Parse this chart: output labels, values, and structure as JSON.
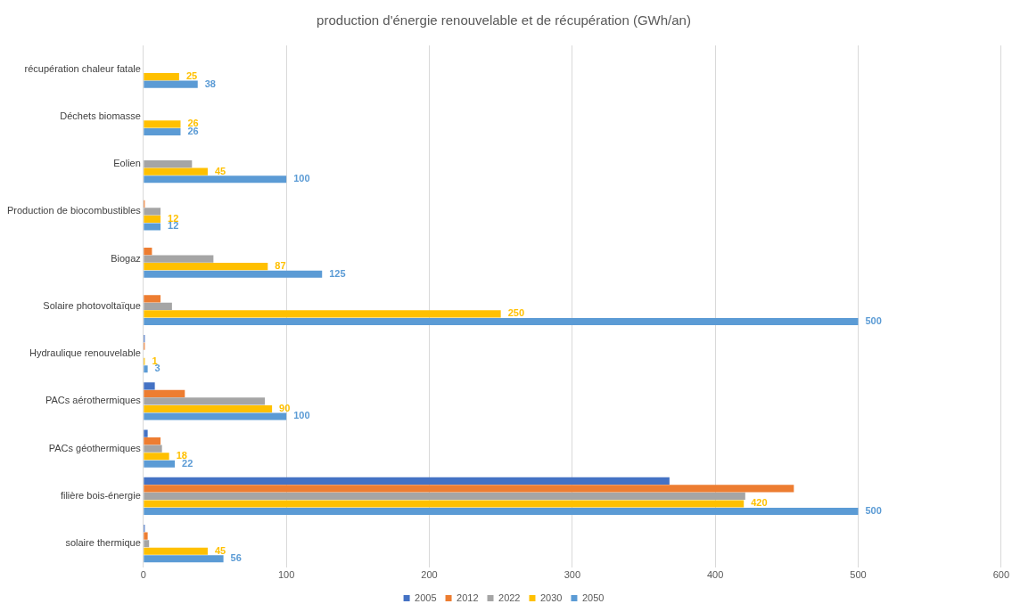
{
  "chart_data": {
    "type": "bar",
    "orientation": "horizontal",
    "title": "production d'énergie renouvelable et de récupération (GWh/an)",
    "categories": [
      "récupération chaleur fatale",
      "Déchets biomasse",
      "Eolien",
      "Production de biocombustibles",
      "Biogaz",
      "Solaire photovoltaïque",
      "Hydraulique renouvelable",
      "PACs aérothermiques",
      "PACs géothermiques",
      "filière bois-énergie",
      "solaire thermique"
    ],
    "series": [
      {
        "name": "2005",
        "color": "#4472c4",
        "values": [
          null,
          null,
          null,
          null,
          null,
          null,
          1,
          8,
          3,
          368,
          1
        ]
      },
      {
        "name": "2012",
        "color": "#ed7d31",
        "values": [
          null,
          null,
          null,
          1,
          6,
          12,
          1,
          29,
          12,
          455,
          3
        ]
      },
      {
        "name": "2022",
        "color": "#a5a5a5",
        "values": [
          null,
          null,
          34,
          12,
          49,
          20,
          null,
          85,
          13,
          421,
          4
        ]
      },
      {
        "name": "2030",
        "color": "#ffc000",
        "values": [
          25,
          26,
          45,
          12,
          87,
          250,
          1,
          90,
          18,
          420,
          45
        ],
        "value_labels": [
          "25",
          "26",
          "45",
          "12",
          "87",
          "250",
          "1",
          "90",
          "18",
          "420",
          "45"
        ]
      },
      {
        "name": "2050",
        "color": "#5b9bd5",
        "values": [
          38,
          26,
          100,
          12,
          125,
          500,
          3,
          100,
          22,
          500,
          56
        ],
        "value_labels": [
          "38",
          "26",
          "100",
          "12",
          "125",
          "500",
          "3",
          "100",
          "22",
          "500",
          "56"
        ]
      }
    ],
    "xlim": [
      0,
      600
    ],
    "xticks": [
      0,
      100,
      200,
      300,
      400,
      500,
      600
    ],
    "grid": "x",
    "legend": "bottom"
  }
}
